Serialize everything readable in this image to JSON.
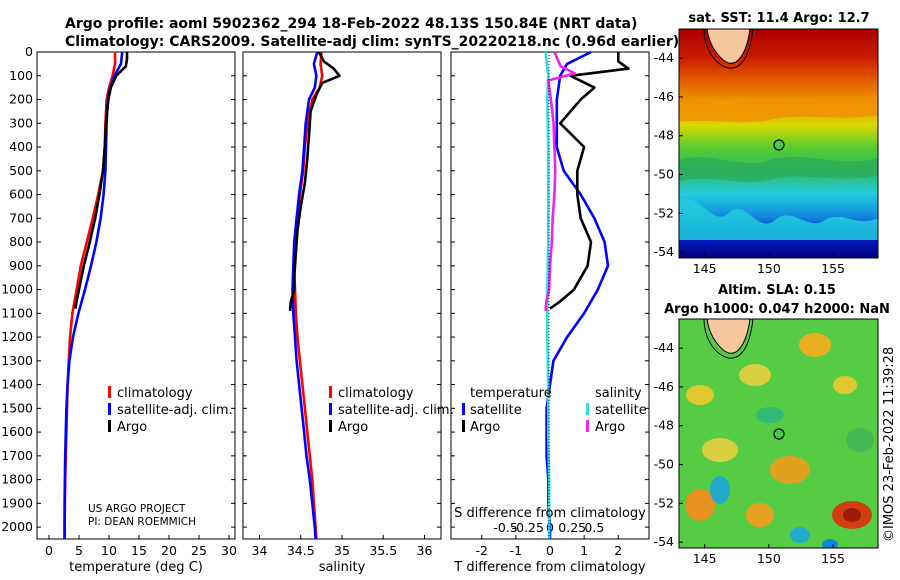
{
  "header": {
    "line1": "Argo profile: aoml 5902362_294 18-Feb-2022 48.13S 150.84E (NRT data)",
    "line2": "Climatology: CARS2009. Satellite-adj clim: synTS_20220218.nc (0.96d earlier)"
  },
  "credit": {
    "line1": "US ARGO PROJECT",
    "line2": "PI: DEAN ROEMMICH"
  },
  "stamp": "©IMOS 23-Feb-2022 11:39:28",
  "colors": {
    "climatology": "#ff0000",
    "satellite": "#0000ff",
    "argo": "#000000",
    "sat_salinity_diff": "#33dddd",
    "argo_salinity_diff": "#ee22ee"
  },
  "chart_data": [
    {
      "type": "line",
      "panel": "temperature",
      "xlabel": "temperature (deg C)",
      "ylabel": "",
      "xlim": [
        -2,
        31
      ],
      "ylim": [
        2050,
        0
      ],
      "xticks": [
        "0",
        "5",
        "10",
        "15",
        "20",
        "25",
        "30"
      ],
      "xtick_values": [
        0,
        5,
        10,
        15,
        20,
        25,
        30
      ],
      "yticks": [
        "0",
        "100",
        "200",
        "300",
        "400",
        "500",
        "600",
        "700",
        "800",
        "900",
        "1000",
        "1100",
        "1200",
        "1300",
        "1400",
        "1500",
        "1600",
        "1700",
        "1800",
        "1900",
        "2000"
      ],
      "ytick_values": [
        0,
        100,
        200,
        300,
        400,
        500,
        600,
        700,
        800,
        900,
        1000,
        1100,
        1200,
        1300,
        1400,
        1500,
        1600,
        1700,
        1800,
        1900,
        2000
      ],
      "legend": [
        "climatology",
        "satellite-adj. clim.",
        "Argo"
      ],
      "series": [
        {
          "name": "climatology",
          "color": "#ff0000",
          "depth": [
            0,
            50,
            100,
            150,
            200,
            300,
            400,
            500,
            600,
            700,
            800,
            900,
            1000,
            1100,
            1200,
            1300,
            1400,
            1500,
            1600,
            1700,
            1800,
            1900,
            2000,
            2050
          ],
          "values": [
            11.0,
            11.0,
            10.6,
            10.0,
            9.6,
            9.4,
            9.3,
            9.0,
            8.2,
            7.3,
            6.3,
            5.3,
            4.6,
            3.9,
            3.5,
            3.3,
            3.1,
            3.0,
            2.9,
            2.8,
            2.7,
            2.65,
            2.6,
            2.6
          ]
        },
        {
          "name": "satellite-adj. clim.",
          "color": "#0000ff",
          "depth": [
            0,
            50,
            100,
            150,
            200,
            300,
            400,
            500,
            600,
            700,
            800,
            900,
            1000,
            1100,
            1200,
            1300,
            1400,
            1500,
            1600,
            1700,
            1800,
            1900,
            2000,
            2050
          ],
          "values": [
            12.2,
            12.0,
            10.9,
            10.2,
            9.8,
            9.6,
            9.5,
            9.4,
            9.1,
            8.6,
            7.9,
            7.0,
            6.0,
            4.9,
            4.0,
            3.4,
            3.1,
            2.9,
            2.8,
            2.7,
            2.65,
            2.6,
            2.6,
            2.6
          ]
        },
        {
          "name": "Argo",
          "color": "#000000",
          "depth": [
            0,
            30,
            60,
            100,
            150,
            200,
            300,
            400,
            500,
            600,
            700,
            800,
            900,
            1000,
            1050,
            1080
          ],
          "values": [
            13.0,
            13.0,
            12.8,
            11.2,
            10.3,
            9.9,
            9.5,
            9.3,
            9.0,
            8.4,
            7.7,
            6.8,
            5.8,
            5.0,
            4.6,
            4.4
          ]
        }
      ]
    },
    {
      "type": "line",
      "panel": "salinity",
      "xlabel": "salinity",
      "xlim": [
        33.8,
        36.2
      ],
      "ylim": [
        2050,
        0
      ],
      "xticks": [
        "34",
        "34.5",
        "35",
        "35.5",
        "36"
      ],
      "xtick_values": [
        34,
        34.5,
        35,
        35.5,
        36
      ],
      "legend": [
        "climatology",
        "satellite-adj. clim.",
        "Argo"
      ],
      "series": [
        {
          "name": "climatology",
          "color": "#ff0000",
          "depth": [
            0,
            50,
            100,
            150,
            200,
            300,
            400,
            500,
            600,
            700,
            800,
            900,
            1000,
            1100,
            1200,
            1300,
            1400,
            1500,
            1600,
            1700,
            1800,
            1900,
            2000,
            2050
          ],
          "values": [
            34.75,
            34.74,
            34.76,
            34.73,
            34.64,
            34.58,
            34.55,
            34.53,
            34.49,
            34.46,
            34.43,
            34.42,
            34.43,
            34.44,
            34.46,
            34.49,
            34.52,
            34.55,
            34.58,
            34.61,
            34.64,
            34.66,
            34.68,
            34.69
          ]
        },
        {
          "name": "satellite-adj. clim.",
          "color": "#0000ff",
          "depth": [
            0,
            50,
            100,
            150,
            200,
            300,
            400,
            500,
            600,
            700,
            800,
            900,
            1000,
            1100,
            1200,
            1300,
            1400,
            1500,
            1600,
            1700,
            1800,
            1900,
            2000,
            2050
          ],
          "values": [
            34.7,
            34.66,
            34.69,
            34.67,
            34.6,
            34.56,
            34.54,
            34.52,
            34.48,
            34.45,
            34.42,
            34.41,
            34.4,
            34.41,
            34.43,
            34.45,
            34.48,
            34.51,
            34.54,
            34.57,
            34.61,
            34.64,
            34.67,
            34.68
          ]
        },
        {
          "name": "Argo",
          "color": "#000000",
          "depth": [
            0,
            40,
            70,
            100,
            130,
            180,
            250,
            350,
            450,
            550,
            650,
            750,
            850,
            950,
            1000,
            1050,
            1090
          ],
          "values": [
            34.72,
            34.78,
            34.9,
            34.97,
            34.76,
            34.69,
            34.62,
            34.6,
            34.58,
            34.55,
            34.5,
            34.46,
            34.44,
            34.42,
            34.42,
            34.38,
            34.37
          ]
        }
      ]
    },
    {
      "type": "line",
      "panel": "differences",
      "xlabel": "T difference from climatology",
      "xlabel_top": "S difference from climatology",
      "xlim": [
        -2.9,
        2.9
      ],
      "ylim": [
        2050,
        0
      ],
      "xticks": [
        "-2",
        "-1",
        "0",
        "1",
        "2"
      ],
      "xtick_values": [
        -2,
        -1,
        0,
        1,
        2
      ],
      "sticks": [
        "-0.5",
        "-0.25",
        "0",
        "0.25",
        "0.5"
      ],
      "stick_values": [
        -0.5,
        -0.25,
        0,
        0.25,
        0.5
      ],
      "legend_titles": [
        "temperature",
        "salinity"
      ],
      "legend_temperature": [
        "satellite",
        "Argo"
      ],
      "legend_salinity": [
        "satellite",
        "Argo"
      ],
      "series": [
        {
          "name": "temperature satellite",
          "color": "#0000ff",
          "depth": [
            0,
            50,
            100,
            200,
            300,
            400,
            500,
            600,
            700,
            800,
            900,
            1000,
            1100,
            1200,
            1300,
            1400,
            1500,
            1600,
            1700,
            1800,
            1900,
            2000,
            2050
          ],
          "values": [
            1.2,
            0.5,
            0.3,
            0.2,
            0.2,
            0.2,
            0.4,
            0.9,
            1.3,
            1.6,
            1.7,
            1.4,
            1.0,
            0.5,
            0.1,
            0.0,
            -0.1,
            -0.1,
            -0.1,
            -0.05,
            -0.05,
            0.0,
            0.0
          ]
        },
        {
          "name": "temperature Argo",
          "color": "#000000",
          "depth": [
            0,
            40,
            70,
            100,
            150,
            200,
            300,
            400,
            500,
            600,
            700,
            800,
            900,
            1000,
            1050,
            1080
          ],
          "values": [
            2.0,
            2.0,
            2.3,
            0.6,
            1.3,
            0.9,
            0.3,
            1.0,
            0.8,
            0.8,
            0.9,
            1.2,
            1.1,
            0.7,
            0.3,
            0.0
          ]
        },
        {
          "name": "salinity satellite",
          "color": "#33dddd",
          "depth": [
            0,
            100,
            200,
            400,
            600,
            800,
            1000,
            1200,
            1400,
            1600,
            1800,
            2000,
            2050
          ],
          "values": [
            -0.05,
            -0.02,
            -0.03,
            -0.02,
            -0.02,
            -0.02,
            -0.03,
            -0.03,
            -0.02,
            -0.02,
            -0.01,
            -0.01,
            -0.01
          ]
        },
        {
          "name": "salinity Argo",
          "color": "#ee22ee",
          "depth": [
            0,
            60,
            90,
            120,
            200,
            300,
            400,
            500,
            600,
            700,
            800,
            900,
            1000,
            1050,
            1090
          ],
          "values": [
            0.05,
            0.12,
            0.28,
            -0.02,
            0.01,
            0.04,
            0.05,
            0.06,
            0.05,
            0.03,
            0.02,
            0.0,
            -0.01,
            -0.04,
            -0.05
          ]
        }
      ]
    },
    {
      "type": "heatmap",
      "panel": "sst_map",
      "title": "sat. SST: 11.4 Argo: 12.7",
      "xticks": [
        "145",
        "150",
        "155"
      ],
      "xtick_values": [
        145,
        150,
        155
      ],
      "yticks": [
        "-44",
        "-46",
        "-48",
        "-50",
        "-52",
        "-54"
      ],
      "ytick_values": [
        -44,
        -46,
        -48,
        -50,
        -52,
        -54
      ],
      "xlim": [
        143,
        158.5
      ],
      "ylim": [
        -54.3,
        -42.5
      ],
      "argo_position": {
        "lon": 150.84,
        "lat": -48.13
      }
    },
    {
      "type": "heatmap",
      "panel": "sla_map",
      "title_line1": "Altim. SLA: 0.15",
      "title_line2": "Argo h1000: 0.047 h2000: NaN",
      "xticks": [
        "145",
        "150",
        "155"
      ],
      "xtick_values": [
        145,
        150,
        155
      ],
      "yticks": [
        "-44",
        "-46",
        "-48",
        "-50",
        "-52",
        "-54"
      ],
      "ytick_values": [
        -44,
        -46,
        -48,
        -50,
        -52,
        -54
      ],
      "xlim": [
        143,
        158.5
      ],
      "ylim": [
        -54.3,
        -42.5
      ],
      "argo_position": {
        "lon": 150.84,
        "lat": -48.13
      }
    }
  ]
}
